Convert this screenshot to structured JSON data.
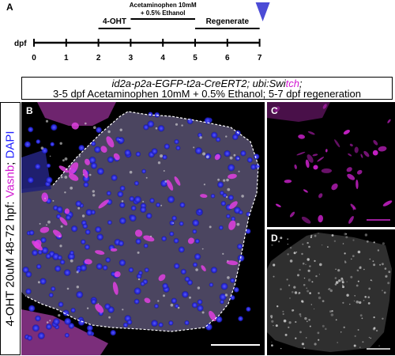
{
  "panel_letters": {
    "a": "A",
    "b": "B",
    "c": "C",
    "d": "D"
  },
  "timeline": {
    "axis_label": "dpf",
    "ticks": [
      "0",
      "1",
      "2",
      "3",
      "4",
      "5",
      "6",
      "7"
    ],
    "treatments": [
      {
        "label": "4-OHT",
        "start": 2,
        "end": 3
      },
      {
        "label_line1": "Acetaminophen 10mM",
        "label_line2": "+ 0.5% Ethanol",
        "start": 3,
        "end": 5
      },
      {
        "label": "Regenerate",
        "start": 5,
        "end": 7
      }
    ],
    "marker_day": 7,
    "marker_color": "#4b4bd6"
  },
  "caption": {
    "line1_prefix": "id2a-p2a-EGFP-t2a-CreERT2; ubi:Swi",
    "line1_magenta": "tch",
    "line1_suffix": ";",
    "line2": "3-5 dpf Acetaminophen 10mM + 0.5% Ethanol; 5-7 dpf regeneration"
  },
  "side_label": {
    "part1": "4-OHT 20uM 48-72 hpf: ",
    "part2": "Vasnb",
    "part3": "; ",
    "part4": "DAPI"
  },
  "colors": {
    "magenta": "#d21ad2",
    "blue": "#2222ff",
    "channel_magenta": "#e030e0",
    "dapi_blue": "#2a2aff"
  }
}
